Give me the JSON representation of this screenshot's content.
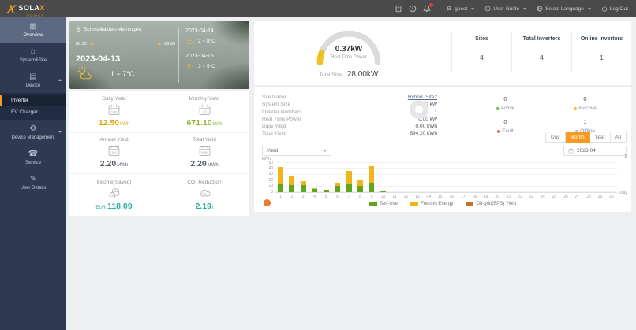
{
  "header": {
    "brand_main": "SOLA",
    "brand_x": "X",
    "brand_sub": "POWER",
    "user": "guest",
    "user_guide": "User Guide",
    "language": "Select Language",
    "logout": "Log Out",
    "accent_color": "#f59b22"
  },
  "sidebar": {
    "items": [
      {
        "label": "Overview",
        "icon": "overview-icon",
        "active": true
      },
      {
        "label": "System&Site",
        "icon": "site-icon"
      },
      {
        "label": "Device",
        "icon": "device-icon",
        "expanded": true,
        "children": [
          {
            "label": "Inverter",
            "active": true
          },
          {
            "label": "EV Charger"
          }
        ]
      },
      {
        "label": "Device Management",
        "icon": "management-icon",
        "collapsible": true
      },
      {
        "label": "Service",
        "icon": "service-icon"
      },
      {
        "label": "User Details",
        "icon": "user-details-icon"
      }
    ]
  },
  "weather": {
    "location": "Schmalkalden-Meiningen",
    "sunrise": "06:30",
    "sunset": "20:06",
    "today": {
      "date": "2023-04-13",
      "temp": "1 ~ 7°C"
    },
    "forecast": [
      {
        "date": "2023-04-14",
        "temp": "2 ~ 8°C"
      },
      {
        "date": "2023-04-15",
        "temp": "3 ~ 5°C"
      }
    ]
  },
  "stats": [
    {
      "label": "Daily Yield",
      "icon": "calendar-day-icon",
      "prefix": "",
      "value": "12.50",
      "unit": "kWh",
      "color": "#e2a50f"
    },
    {
      "label": "Monthly Yield",
      "icon": "calendar-month-icon",
      "prefix": "",
      "value": "671.10",
      "unit": "kWh",
      "color": "#8db832"
    },
    {
      "label": "Annual Yield",
      "icon": "calendar-year-icon",
      "prefix": "",
      "value": "2.20",
      "unit": "MWh",
      "color": "#5a6068"
    },
    {
      "label": "Total Yield",
      "icon": "calendar-total-icon",
      "prefix": "",
      "value": "2.20",
      "unit": "MWh",
      "color": "#5a6068"
    },
    {
      "label": "Income(Saved)",
      "icon": "money-icon",
      "prefix": "EUR",
      "value": "118.09",
      "unit": "",
      "color": "#2fae9b"
    },
    {
      "label": "CO₂ Reduction",
      "icon": "co2-icon",
      "prefix": "",
      "value": "2.19",
      "unit": "t",
      "color": "#2fae9b"
    }
  ],
  "overview_panel": {
    "gauge": {
      "value": "0.37kW",
      "label": "Real Time Power",
      "total_label": "Total Size",
      "total_value": "28.00kW",
      "track_color": "#d9dbdd",
      "fill_color": "#f2c01d"
    },
    "kpis": [
      {
        "label": "Sites",
        "value": "4"
      },
      {
        "label": "Total Inverters",
        "value": "4"
      },
      {
        "label": "Online Inverters",
        "value": "1"
      }
    ]
  },
  "site_panel": {
    "info": [
      {
        "label": "Site Name",
        "value": "Hybrid_Site2",
        "link": true
      },
      {
        "label": "System Size",
        "value": "10.00 kW"
      },
      {
        "label": "Inverter Numbers",
        "value": "1"
      },
      {
        "label": "Real Time Power",
        "value": "0.00 kW"
      },
      {
        "label": "Daily Yield",
        "value": "0.00 kWh"
      },
      {
        "label": "Total Yield",
        "value": "694.20 kWh"
      }
    ],
    "status": [
      {
        "label": "Active",
        "value": "0",
        "color": "#67c23a"
      },
      {
        "label": "Inactive",
        "value": "0",
        "color": "#f2c01d"
      },
      {
        "label": "Fault",
        "value": "0",
        "color": "#f15c5c"
      },
      {
        "label": "Offline",
        "value": "1",
        "color": "#b8bcc2"
      }
    ],
    "donut_color": "#e4e6e9",
    "range_tabs": [
      "Day",
      "Month",
      "Year",
      "All"
    ],
    "active_tab": "Month",
    "yield_select": "Yield",
    "date_value": "2023-04"
  },
  "chart_data": {
    "type": "bar",
    "stacked": true,
    "title": "",
    "ylabel": "kWh",
    "xlabel": "Day",
    "ylim": [
      0,
      50
    ],
    "yticks": [
      0,
      10,
      20,
      30,
      40,
      50
    ],
    "grid": true,
    "legend_position": "bottom",
    "categories": [
      1,
      2,
      3,
      4,
      5,
      6,
      7,
      8,
      9,
      10,
      11,
      12,
      13,
      14,
      15,
      16,
      17,
      18,
      19,
      20,
      21,
      22,
      23,
      24,
      25,
      26,
      27,
      28,
      29,
      30
    ],
    "series": [
      {
        "name": "Self-Use",
        "color": "#61a41e",
        "values": [
          13,
          11.5,
          12,
          5,
          3.5,
          10.5,
          14,
          10,
          16,
          2.5,
          0,
          0,
          0,
          0,
          0,
          0,
          0,
          0,
          0,
          0,
          0,
          0,
          0,
          0,
          0,
          0,
          0,
          0,
          0,
          0
        ]
      },
      {
        "name": "Feed-In Energy",
        "color": "#f0b51a",
        "values": [
          29,
          14.5,
          7,
          1,
          1,
          5.5,
          21,
          11,
          27,
          0.5,
          0,
          0,
          0,
          0,
          0,
          0,
          0,
          0,
          0,
          0,
          0,
          0,
          0,
          0,
          0,
          0,
          0,
          0,
          0,
          0
        ]
      },
      {
        "name": "Off-grid(EPS) Yield",
        "color": "#c2702e",
        "values": [
          0,
          0,
          0,
          0,
          0,
          0,
          0,
          0,
          0,
          0,
          0,
          0,
          0,
          0,
          0,
          0,
          0,
          0,
          0,
          0,
          0,
          0,
          0,
          0,
          0,
          0,
          0,
          0,
          0,
          0
        ]
      }
    ]
  }
}
